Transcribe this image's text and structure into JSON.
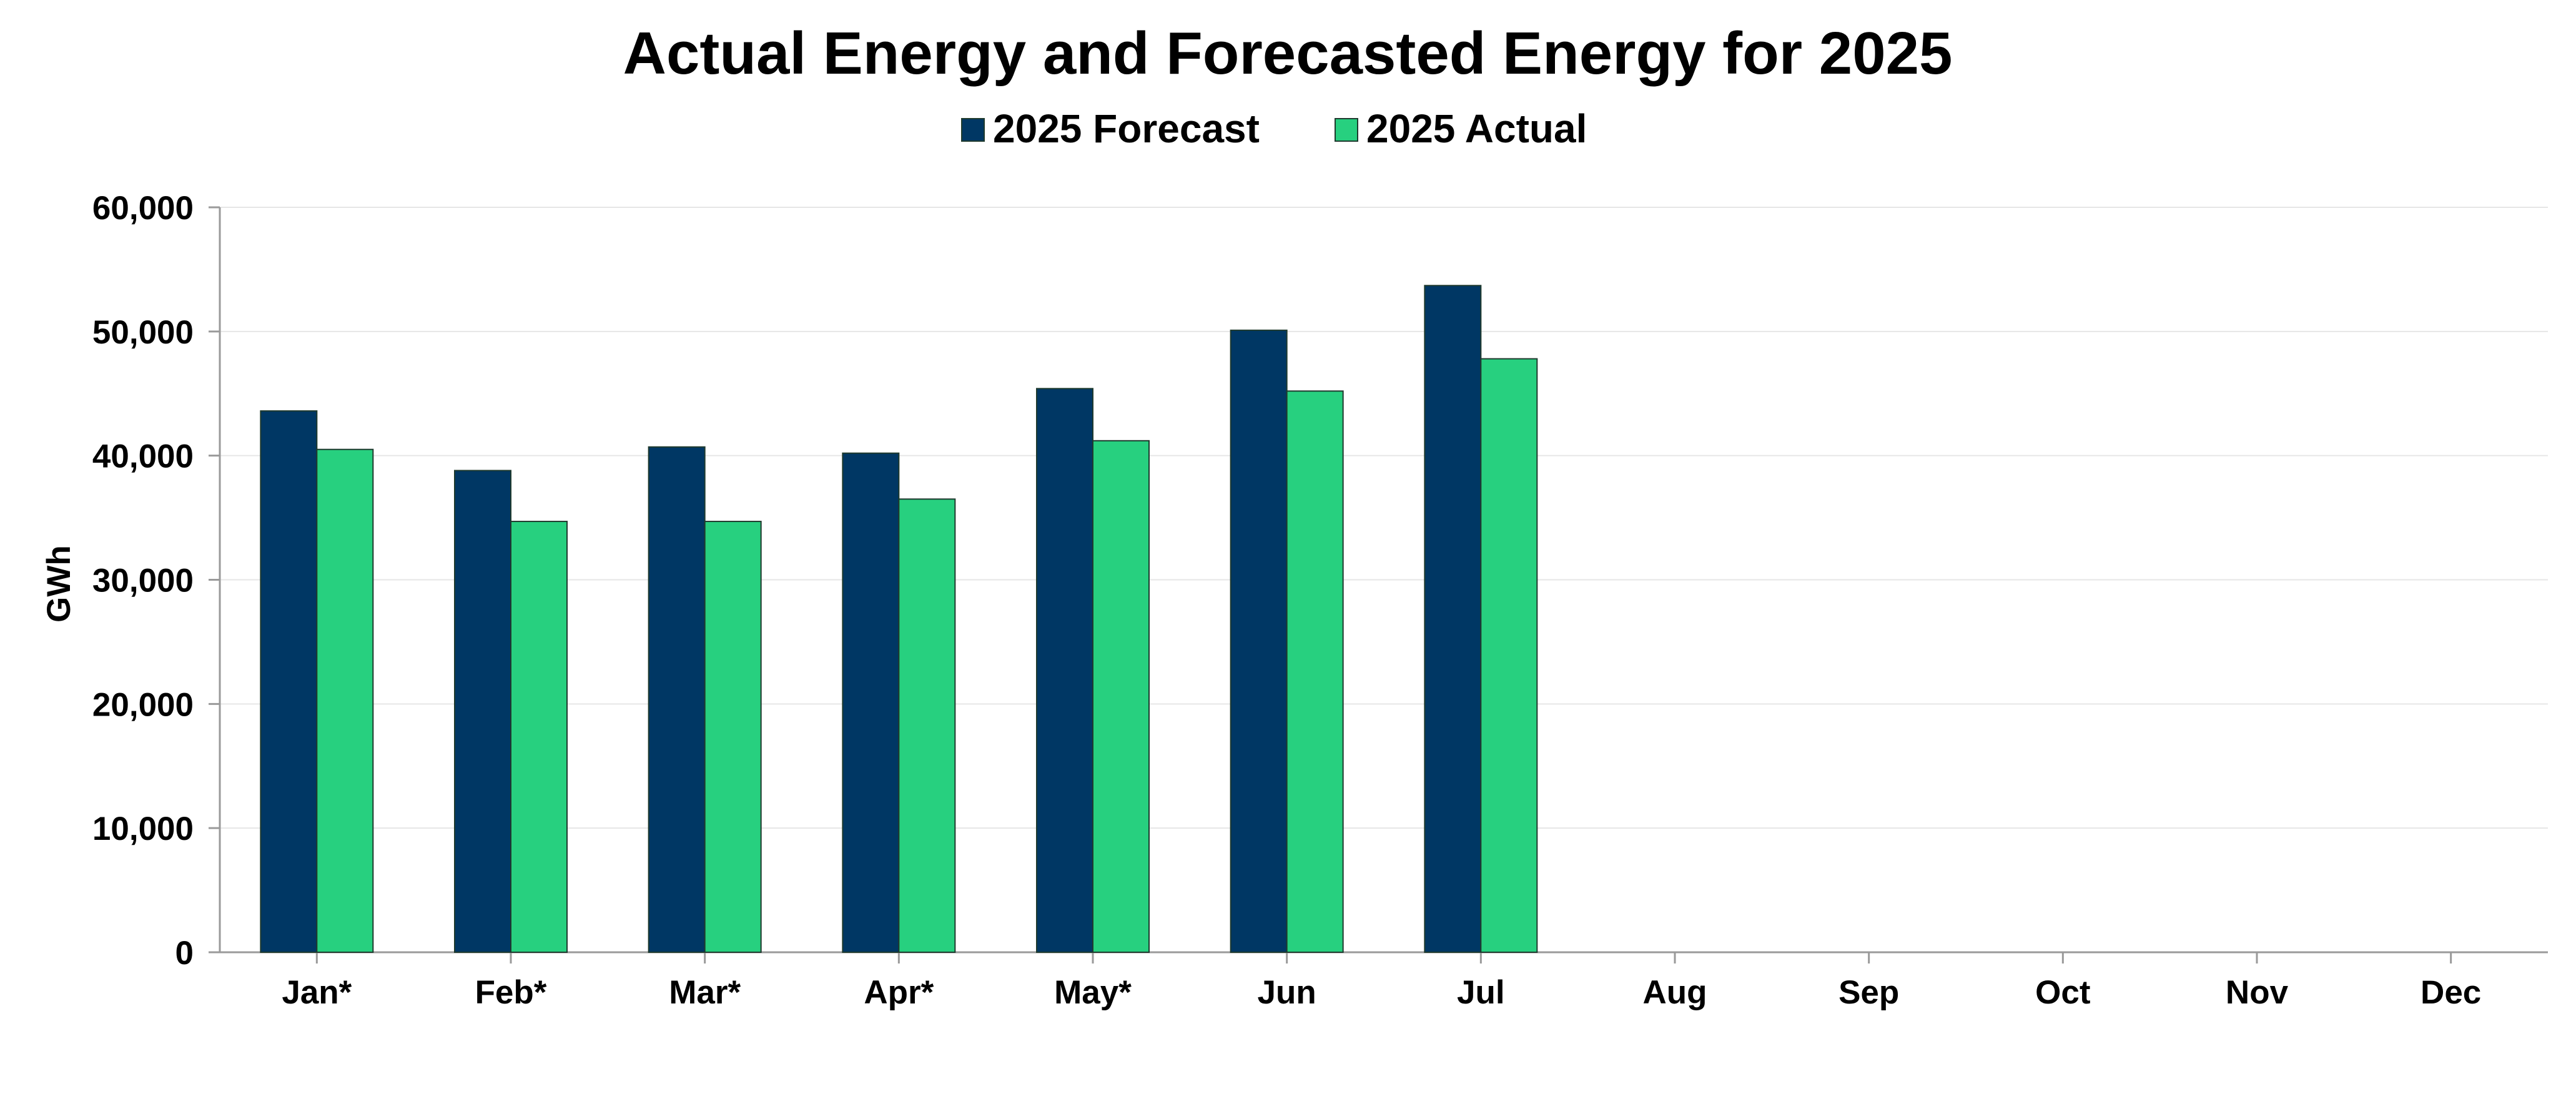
{
  "chart_data": {
    "type": "bar",
    "title": "Actual Energy and Forecasted Energy for 2025",
    "xlabel": "",
    "ylabel": "GWh",
    "categories": [
      "Jan*",
      "Feb*",
      "Mar*",
      "Apr*",
      "May*",
      "Jun",
      "Jul",
      "Aug",
      "Sep",
      "Oct",
      "Nov",
      "Dec"
    ],
    "series": [
      {
        "name": "2025 Forecast",
        "color": "#003764",
        "values": [
          43600,
          38800,
          40700,
          40200,
          45400,
          50100,
          53700,
          null,
          null,
          null,
          null,
          null
        ]
      },
      {
        "name": "2025 Actual",
        "color": "#27D07F",
        "values": [
          40500,
          34700,
          34700,
          36500,
          41200,
          45200,
          47800,
          null,
          null,
          null,
          null,
          null
        ]
      }
    ],
    "ylim": [
      0,
      60000
    ],
    "yticks": [
      0,
      10000,
      20000,
      30000,
      40000,
      50000,
      60000
    ],
    "ytick_labels": [
      "0",
      "10,000",
      "20,000",
      "30,000",
      "40,000",
      "50,000",
      "60,000"
    ],
    "grid": true,
    "legend": "top-center"
  }
}
